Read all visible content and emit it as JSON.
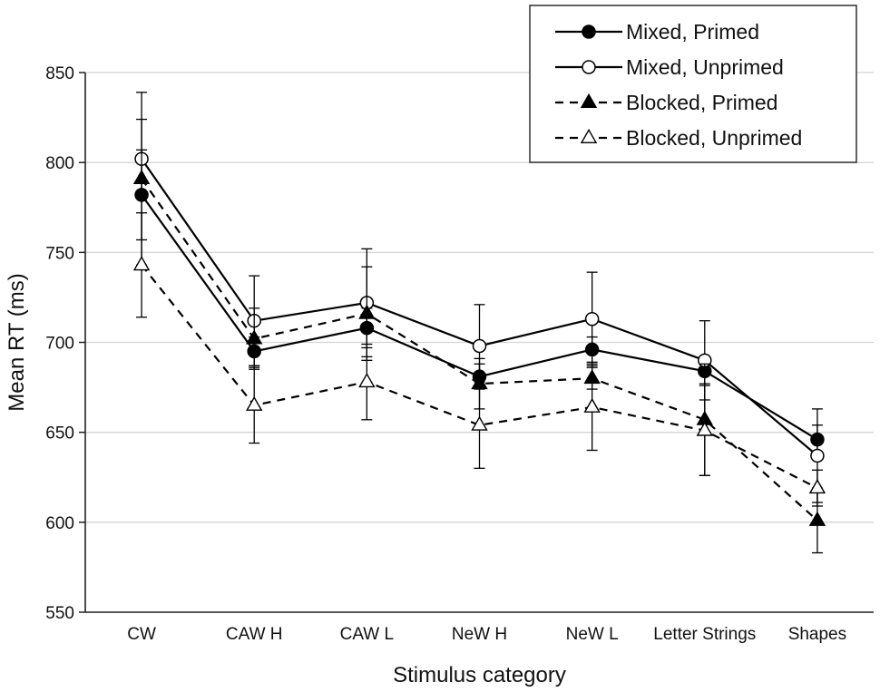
{
  "chart_data": {
    "type": "line",
    "title": "",
    "xlabel": "Stimulus category",
    "ylabel": "Mean RT (ms)",
    "ylim": [
      550,
      850
    ],
    "yticks": [
      550,
      600,
      650,
      700,
      750,
      800,
      850
    ],
    "grid": "horizontal",
    "legend_position": "top-right",
    "categories": [
      "CW",
      "CAW H",
      "CAW L",
      "NeW H",
      "NeW L",
      "Letter Strings",
      "Shapes"
    ],
    "series": [
      {
        "name": "Mixed, Primed",
        "values": [
          782,
          695,
          708,
          681,
          696,
          684,
          646
        ],
        "error": [
          25,
          8,
          11,
          7,
          7,
          7,
          8
        ],
        "line_style": "solid",
        "marker": "circle",
        "marker_fill": "#000000"
      },
      {
        "name": "Mixed, Unprimed",
        "values": [
          802,
          712,
          722,
          698,
          713,
          690,
          637
        ],
        "error": [
          22,
          25,
          30,
          23,
          26,
          22,
          26
        ],
        "line_style": "solid",
        "marker": "circle",
        "marker_fill": "#ffffff"
      },
      {
        "name": "Blocked, Primed",
        "values": [
          791,
          702,
          716,
          677,
          680,
          657,
          601
        ],
        "error": [
          48,
          17,
          26,
          14,
          6,
          31,
          18
        ],
        "line_style": "dashed",
        "marker": "triangle",
        "marker_fill": "#000000"
      },
      {
        "name": "Blocked, Unprimed",
        "values": [
          743,
          665,
          678,
          654,
          664,
          651,
          619
        ],
        "error": [
          29,
          21,
          21,
          24,
          24,
          25,
          10
        ],
        "line_style": "dashed",
        "marker": "triangle",
        "marker_fill": "#ffffff"
      }
    ]
  },
  "colors": {
    "line": "#000000",
    "grid": "#d4d4d4",
    "axis": "#222222",
    "background": "#ffffff"
  }
}
